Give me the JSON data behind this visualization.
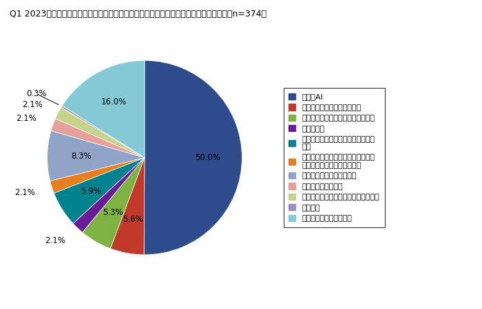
{
  "title": "Q1 2023年、電気・情報工学分野で最も注目されたと思う分野はどれだと思いますか？（n=374）",
  "legend_labels": [
    "・生成AI",
    "・機械力学、メカトロニクス",
    "・ロボティクス、知能機械システム",
    "・統計科学",
    "・情報ネットワーク、情報セキュリ\nティ",
    "・知覚情報処理、ヒューマンインタ\nフェース、インタラクション",
    "・生命、健康、医療情報学",
    "・学習支援システム",
    "・エンタテインメント、ゲーム情報学",
    "・その他",
    "・わからない／特にない"
  ],
  "values": [
    50.0,
    5.6,
    5.3,
    2.1,
    5.9,
    2.1,
    8.3,
    2.1,
    2.1,
    0.3,
    16.0
  ],
  "colors": [
    "#2E4B8B",
    "#C0392B",
    "#7CB342",
    "#6A1B9A",
    "#00838F",
    "#E67E22",
    "#90A4C8",
    "#E8A09A",
    "#C5D48A",
    "#9C8DC0",
    "#85C9D6"
  ],
  "title_fontsize": 9,
  "legend_fontsize": 8,
  "pct_fontsize": 8.5,
  "pct_inside_color": "black",
  "pct_outside_color": "black"
}
